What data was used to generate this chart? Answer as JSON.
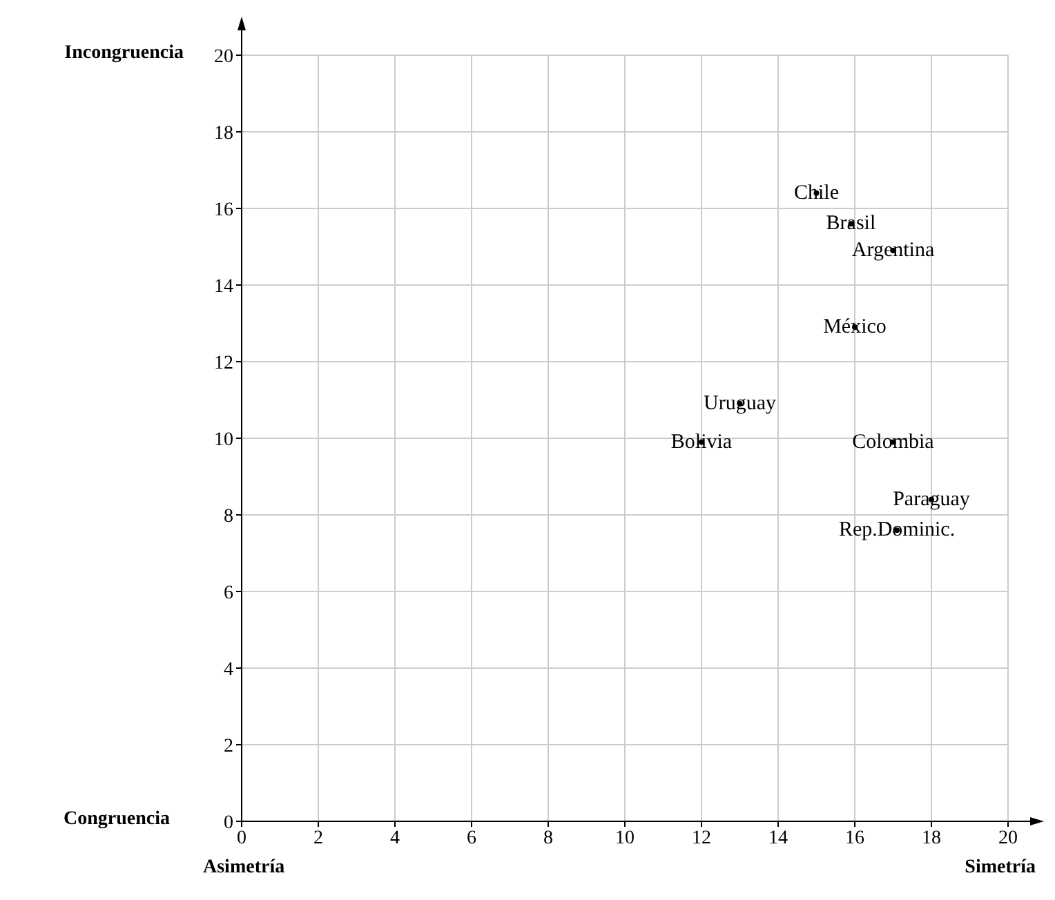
{
  "chart_data": {
    "type": "scatter",
    "xlim": [
      0,
      20
    ],
    "ylim": [
      0,
      20
    ],
    "xticks": [
      0,
      2,
      4,
      6,
      8,
      10,
      12,
      14,
      16,
      18,
      20
    ],
    "yticks": [
      0,
      2,
      4,
      6,
      8,
      10,
      12,
      14,
      16,
      18,
      20
    ],
    "grid": true,
    "annotations": [
      "Incongruencia",
      "Congruencia",
      "Asimetría",
      "Simetría"
    ],
    "series": [
      {
        "name": "Chile",
        "color": "#000000",
        "x": [
          15.0
        ],
        "values": [
          16.4
        ]
      },
      {
        "name": "Brasil",
        "color": "#000000",
        "x": [
          15.9
        ],
        "values": [
          15.6
        ]
      },
      {
        "name": "Argentina",
        "color": "#000000",
        "x": [
          17.0
        ],
        "values": [
          14.9
        ]
      },
      {
        "name": "México",
        "color": "#000000",
        "x": [
          16.0
        ],
        "values": [
          12.9
        ]
      },
      {
        "name": "Uruguay",
        "color": "#000000",
        "x": [
          13.0
        ],
        "values": [
          10.9
        ]
      },
      {
        "name": "Bolivia",
        "color": "#000000",
        "x": [
          12.0
        ],
        "values": [
          9.9
        ]
      },
      {
        "name": "Colombia",
        "color": "#000000",
        "x": [
          17.0
        ],
        "values": [
          9.9
        ]
      },
      {
        "name": "Paraguay",
        "color": "#000000",
        "x": [
          18.0
        ],
        "values": [
          8.4
        ]
      },
      {
        "name": "Rep.Dominic.",
        "color": "#000000",
        "x": [
          17.1
        ],
        "values": [
          7.6
        ]
      }
    ]
  }
}
